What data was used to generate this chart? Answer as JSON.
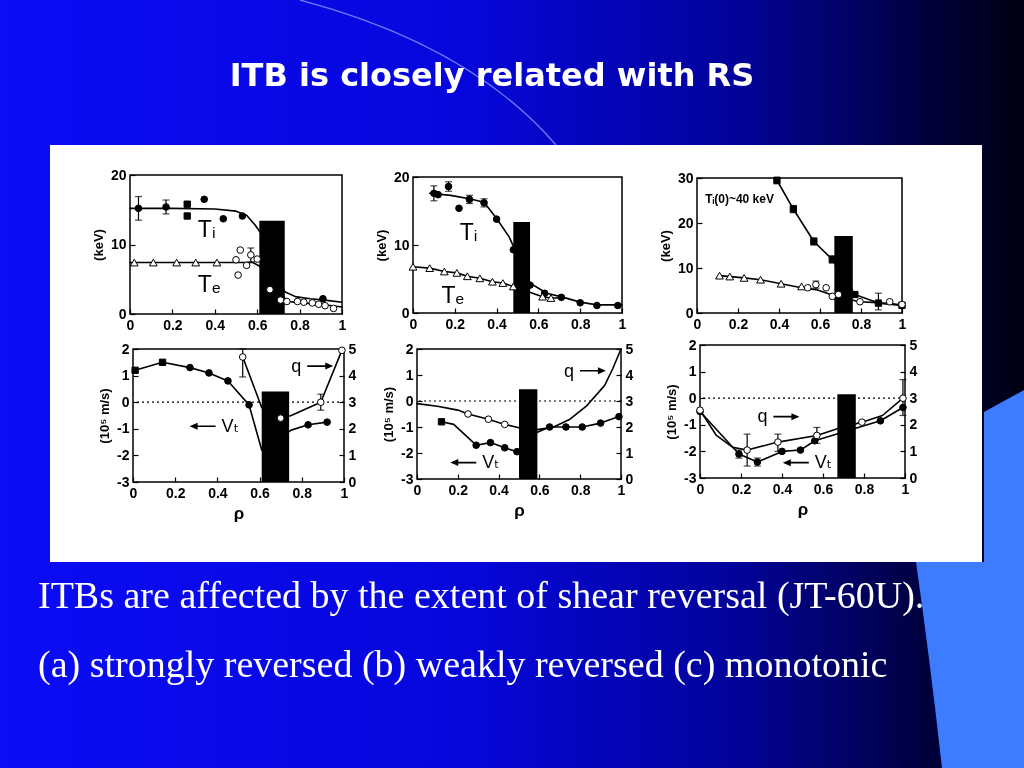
{
  "chart_data": [
    {
      "type": "line",
      "title": "ITB is closely related with RS",
      "annotations": [
        "ITBs are affected by the extent of shear reversal (JT-60U).",
        "(a) strongly reversed (b) weakly reversed (c) monotonic"
      ],
      "ylabel": "(keV)",
      "xlim": [
        0,
        1
      ],
      "xticks": [
        0,
        0.2,
        0.4,
        0.6,
        0.8,
        1
      ],
      "ylim": [
        0,
        20
      ],
      "yticks": [
        0,
        10,
        20
      ],
      "bands": [
        {
          "axis": "x",
          "from": 0.61,
          "to": 0.73,
          "color": "#000000"
        }
      ],
      "series": [
        {
          "name": "Tᵢ",
          "type": "scatter",
          "color": "#000000",
          "marker": "circle",
          "x": [
            0.04,
            0.17,
            0.35,
            0.44,
            0.53,
            0.91
          ],
          "values": [
            15.2,
            15.4,
            16.5,
            13.7,
            14.1,
            2.2
          ],
          "errors": [
            1.7,
            1.0,
            null,
            null,
            null,
            null
          ]
        },
        {
          "type": "scatter",
          "color": "#000000",
          "marker": "square",
          "x": [
            0.27,
            0.27
          ],
          "values": [
            15.8,
            14.1
          ]
        },
        {
          "type": "line",
          "color": "#000000",
          "marker": "none",
          "x": [
            0,
            0.2,
            0.4,
            0.5,
            0.55,
            0.59,
            0.62,
            0.73,
            0.78,
            0.85,
            0.92,
            1
          ],
          "values": [
            15.2,
            15.2,
            15.1,
            14.8,
            14.2,
            12.8,
            11.5,
            3.2,
            2.5,
            2.2,
            2.0,
            1.7
          ]
        },
        {
          "name": "Tₑ",
          "type": "line",
          "color": "#000000",
          "marker": "none",
          "x": [
            0,
            0.58,
            0.61,
            0.73,
            0.75,
            0.8,
            0.9,
            1
          ],
          "values": [
            7.4,
            7.4,
            6.9,
            2.3,
            1.8,
            1.6,
            1.4,
            1.0
          ]
        },
        {
          "type": "scatter",
          "color": "#ffffff",
          "marker": "triangle",
          "x": [
            0.02,
            0.11,
            0.22,
            0.31,
            0.41
          ],
          "values": [
            7.4,
            7.4,
            7.4,
            7.4,
            7.4
          ]
        },
        {
          "type": "scatter",
          "color": "#ffffff",
          "marker": "circle",
          "x": [
            0.5,
            0.51,
            0.52,
            0.55,
            0.57,
            0.6,
            0.66,
            0.71,
            0.74,
            0.79,
            0.82,
            0.86,
            0.89,
            0.92,
            0.96
          ],
          "values": [
            7.8,
            5.6,
            9.2,
            7.0,
            8.5,
            7.9,
            3.5,
            2.0,
            1.8,
            1.8,
            1.7,
            1.6,
            1.4,
            1.2,
            0.8
          ],
          "errors": [
            null,
            null,
            null,
            null,
            1.0,
            null,
            null,
            null,
            null,
            null,
            null,
            null,
            null,
            null,
            null
          ]
        }
      ]
    },
    {
      "type": "line",
      "ylabel": "(keV)",
      "xlim": [
        0,
        1
      ],
      "xticks": [
        0,
        0.2,
        0.4,
        0.6,
        0.8,
        1
      ],
      "ylim": [
        0,
        20
      ],
      "yticks": [
        0,
        10,
        20
      ],
      "bands": [
        {
          "axis": "x",
          "from": 0.48,
          "to": 0.56,
          "color": "#000000"
        }
      ],
      "series": [
        {
          "name": "Tᵢ",
          "type": "scatter",
          "color": "#000000",
          "marker": "circle",
          "x": [
            0.1,
            0.12,
            0.17,
            0.22,
            0.27,
            0.34,
            0.4,
            0.48,
            0.56,
            0.63,
            0.71,
            0.8,
            0.88,
            0.98
          ],
          "values": [
            17.6,
            17.4,
            18.6,
            15.4,
            16.7,
            16.2,
            13.8,
            9.3,
            4.1,
            2.9,
            2.3,
            1.5,
            1.1,
            1.1
          ],
          "errors": [
            1.1,
            null,
            0.7,
            null,
            0.6,
            0.6,
            null,
            null,
            null,
            null,
            null,
            null,
            null,
            null
          ]
        },
        {
          "type": "line",
          "color": "#000000",
          "marker": "none",
          "x": [
            0.08,
            0.18,
            0.27,
            0.34,
            0.4,
            0.46,
            0.56,
            0.64,
            0.72,
            0.8,
            0.88,
            1
          ],
          "values": [
            17.6,
            17.3,
            16.8,
            16.3,
            13.9,
            11.2,
            4.4,
            2.9,
            2.3,
            1.6,
            1.2,
            1.2
          ]
        },
        {
          "name": "Tₑ",
          "type": "line",
          "color": "#000000",
          "marker": "none",
          "x": [
            0,
            0.08,
            0.15,
            0.21,
            0.26,
            0.32,
            0.38,
            0.43,
            0.48,
            0.62,
            0.66,
            0.71
          ],
          "values": [
            6.8,
            6.6,
            6.1,
            5.9,
            5.4,
            5.1,
            4.6,
            4.4,
            3.9,
            2.4,
            2.2,
            2.2
          ]
        },
        {
          "type": "scatter",
          "color": "#ffffff",
          "marker": "triangle",
          "x": [
            0,
            0.08,
            0.15,
            0.21,
            0.26,
            0.32,
            0.38,
            0.43,
            0.48,
            0.62,
            0.66
          ],
          "values": [
            6.8,
            6.6,
            6.1,
            5.9,
            5.4,
            5.1,
            4.6,
            4.4,
            3.9,
            2.4,
            2.2
          ]
        }
      ]
    },
    {
      "type": "line",
      "ylabel": "(keV)",
      "xlim": [
        0,
        1
      ],
      "xticks": [
        0,
        0.2,
        0.4,
        0.6,
        0.8,
        1
      ],
      "ylim": [
        0,
        30
      ],
      "yticks": [
        0,
        10,
        20,
        30
      ],
      "annotations": [
        "Tᵢ(0)~40 keV"
      ],
      "bands": [
        {
          "axis": "x",
          "from": 0.67,
          "to": 0.76,
          "color": "#000000"
        }
      ],
      "series": [
        {
          "type": "line",
          "color": "#000000",
          "marker": "square",
          "x": [
            0.39,
            0.47,
            0.57,
            0.66,
            0.77,
            0.885,
            1
          ],
          "values": [
            29.5,
            23.1,
            15.9,
            11.9,
            4.1,
            2.2,
            1.7
          ],
          "errors": [
            [
              28.7,
              30
            ],
            0.8,
            0.8,
            0.8,
            null,
            [
              0.7,
              4.4
            ],
            null
          ]
        },
        {
          "type": "line",
          "color": "#000000",
          "marker": "none",
          "x": [
            0.11,
            0.23,
            0.31,
            0.41,
            0.51,
            0.58,
            0.66,
            0.79,
            0.88,
            1
          ],
          "values": [
            8.3,
            7.8,
            7.4,
            6.5,
            5.6,
            5.2,
            4.0,
            2.5,
            2.3,
            1.8
          ]
        },
        {
          "type": "scatter",
          "color": "#ffffff",
          "marker": "triangle",
          "x": [
            0.11,
            0.16,
            0.23,
            0.31,
            0.41,
            0.51
          ],
          "values": [
            8.3,
            8.1,
            7.8,
            7.4,
            6.5,
            5.9
          ]
        },
        {
          "type": "scatter",
          "color": "#ffffff",
          "marker": "circle",
          "x": [
            0.54,
            0.58,
            0.63,
            0.66,
            0.69,
            0.795,
            0.94,
            1
          ],
          "values": [
            5.6,
            6.3,
            5.6,
            3.7,
            4.1,
            2.5,
            2.5,
            1.9
          ],
          "errors": [
            null,
            0.8,
            null,
            null,
            null,
            null,
            null,
            null
          ]
        }
      ]
    },
    {
      "type": "line",
      "xlabel": "ρ",
      "ylabel": "(10⁵ m/s)",
      "xlim": [
        0,
        1
      ],
      "xticks": [
        0,
        0.2,
        0.4,
        0.6,
        0.8,
        1
      ],
      "ylim": [
        -3,
        2
      ],
      "yticks": [
        -3,
        -2,
        -1,
        0,
        1,
        2
      ],
      "y2lim": [
        0,
        5
      ],
      "y2ticks": [
        0,
        1,
        2,
        3,
        4,
        5
      ],
      "ref_lines": [
        {
          "axis": "y",
          "value": 0,
          "line_style": "dotted",
          "color": "#000000"
        }
      ],
      "bands": [
        {
          "axis": "x",
          "from": 0.61,
          "to": 0.74,
          "color": "#000000"
        }
      ],
      "series": [
        {
          "name": "Vₜ",
          "type": "line",
          "color": "#000000",
          "marker": "none",
          "x": [
            0.01,
            0.14,
            0.27,
            0.36,
            0.45,
            0.55,
            0.61,
            0.75,
            0.83,
            0.92
          ],
          "values": [
            1.2,
            1.5,
            1.3,
            1.1,
            0.8,
            -0.1,
            -1.8,
            -1.05,
            -0.85,
            -0.75
          ]
        },
        {
          "type": "scatter",
          "color": "#000000",
          "marker": "square",
          "x": [
            0.01,
            0.14
          ],
          "values": [
            1.2,
            1.5
          ]
        },
        {
          "type": "scatter",
          "color": "#000000",
          "marker": "circle",
          "x": [
            0.27,
            0.36,
            0.45,
            0.55,
            0.83,
            0.92
          ],
          "values": [
            1.3,
            1.1,
            0.8,
            -0.1,
            -0.85,
            -0.75
          ]
        },
        {
          "name": "q",
          "type": "line",
          "axis": "y2",
          "color": "#000000",
          "marker": "none",
          "x": [
            0.52,
            0.61,
            0.7,
            0.75,
            0.89,
            0.99
          ],
          "values": [
            4.7,
            2.8,
            2.4,
            2.5,
            3.0,
            4.95
          ]
        },
        {
          "type": "scatter",
          "axis": "y2",
          "color": "#ffffff",
          "marker": "circle",
          "x": [
            0.52,
            0.7,
            0.89,
            0.99
          ],
          "values": [
            4.7,
            2.4,
            3.0,
            4.95
          ],
          "errors": [
            [
              3.95,
              5
            ],
            null,
            0.3,
            null
          ]
        }
      ]
    },
    {
      "type": "line",
      "xlabel": "ρ",
      "ylabel": "(10⁵ m/s)",
      "xlim": [
        0,
        1
      ],
      "xticks": [
        0,
        0.2,
        0.4,
        0.6,
        0.8,
        1
      ],
      "ylim": [
        -3,
        2
      ],
      "yticks": [
        -3,
        -2,
        -1,
        0,
        1,
        2
      ],
      "y2lim": [
        0,
        5
      ],
      "y2ticks": [
        0,
        1,
        2,
        3,
        4,
        5
      ],
      "ref_lines": [
        {
          "axis": "y",
          "value": 0,
          "line_style": "dotted",
          "color": "#000000"
        }
      ],
      "bands": [
        {
          "axis": "x",
          "from": 0.5,
          "to": 0.59,
          "color": "#000000"
        }
      ],
      "series": [
        {
          "name": "Vₜ",
          "type": "line",
          "color": "#000000",
          "marker": "none",
          "x": [
            0.12,
            0.18,
            0.29,
            0.36,
            0.43,
            0.49,
            0.59,
            0.65,
            0.73,
            0.81,
            0.9,
            0.99
          ],
          "values": [
            -0.8,
            -0.9,
            -1.7,
            -1.6,
            -1.8,
            -1.95,
            -1.2,
            -1.0,
            -1.0,
            -1.0,
            -0.85,
            -0.6
          ]
        },
        {
          "type": "scatter",
          "color": "#000000",
          "marker": "square",
          "x": [
            0.12
          ],
          "values": [
            -0.8
          ]
        },
        {
          "type": "scatter",
          "color": "#000000",
          "marker": "circle",
          "x": [
            0.29,
            0.36,
            0.43,
            0.49,
            0.65,
            0.73,
            0.81,
            0.9,
            0.99
          ],
          "values": [
            -1.7,
            -1.6,
            -1.8,
            -1.95,
            -1.0,
            -1.0,
            -1.0,
            -0.85,
            -0.6
          ]
        },
        {
          "name": "q",
          "type": "line",
          "axis": "y2",
          "color": "#000000",
          "marker": "none",
          "x": [
            0,
            0.1,
            0.2,
            0.25,
            0.35,
            0.43,
            0.51,
            0.59,
            0.67,
            0.75,
            0.83,
            0.92,
            0.96,
            1
          ],
          "values": [
            2.9,
            2.8,
            2.65,
            2.5,
            2.3,
            2.1,
            1.95,
            1.9,
            2.0,
            2.3,
            2.8,
            3.6,
            4.25,
            5
          ]
        },
        {
          "type": "scatter",
          "axis": "y2",
          "color": "#ffffff",
          "marker": "circle",
          "x": [
            0.25,
            0.35,
            0.43
          ],
          "values": [
            2.5,
            2.3,
            2.1
          ]
        }
      ]
    },
    {
      "type": "line",
      "xlabel": "ρ",
      "ylabel": "(10⁵ m/s)",
      "xlim": [
        0,
        1
      ],
      "xticks": [
        0,
        0.2,
        0.4,
        0.6,
        0.8,
        1
      ],
      "ylim": [
        -3,
        2
      ],
      "yticks": [
        -3,
        -2,
        -1,
        0,
        1,
        2
      ],
      "y2lim": [
        0,
        5
      ],
      "y2ticks": [
        0,
        1,
        2,
        3,
        4,
        5
      ],
      "ref_lines": [
        {
          "axis": "y",
          "value": 0,
          "line_style": "dotted",
          "color": "#000000"
        }
      ],
      "bands": [
        {
          "axis": "x",
          "from": 0.67,
          "to": 0.76,
          "color": "#000000"
        }
      ],
      "series": [
        {
          "name": "Vₜ",
          "type": "line",
          "color": "#000000",
          "marker": "none",
          "x": [
            0,
            0.19,
            0.28,
            0.4,
            0.49,
            0.56,
            0.88,
            0.99
          ],
          "values": [
            -0.5,
            -2.1,
            -2.4,
            -2.0,
            -1.95,
            -1.6,
            -0.85,
            -0.35
          ]
        },
        {
          "type": "scatter",
          "color": "#000000",
          "marker": "circle",
          "x": [
            0,
            0.19,
            0.28,
            0.4,
            0.49,
            0.56,
            0.88,
            0.99
          ],
          "values": [
            -0.5,
            -2.1,
            -2.4,
            -2.0,
            -1.95,
            -1.6,
            -0.85,
            -0.35
          ],
          "errors": [
            null,
            0.15,
            0.15,
            null,
            null,
            null,
            null,
            null
          ]
        },
        {
          "name": "q",
          "type": "line",
          "axis": "y2",
          "color": "#000000",
          "marker": "none",
          "x": [
            0,
            0.08,
            0.16,
            0.23,
            0.38,
            0.57,
            0.67,
            0.79,
            0.89,
            0.99
          ],
          "values": [
            2.55,
            1.6,
            1.15,
            1.05,
            1.35,
            1.6,
            1.85,
            2.1,
            2.35,
            3.0
          ]
        },
        {
          "type": "scatter",
          "axis": "y2",
          "color": "#ffffff",
          "marker": "circle",
          "x": [
            0,
            0.23,
            0.38,
            0.57,
            0.79,
            0.99
          ],
          "values": [
            2.55,
            1.05,
            1.35,
            1.6,
            2.1,
            3.0
          ],
          "errors": [
            null,
            [
              0.45,
              1.65
            ],
            [
              1.0,
              1.65
            ],
            [
              1.3,
              1.9
            ],
            null,
            [
              2.35,
              3.7
            ]
          ]
        }
      ]
    }
  ]
}
